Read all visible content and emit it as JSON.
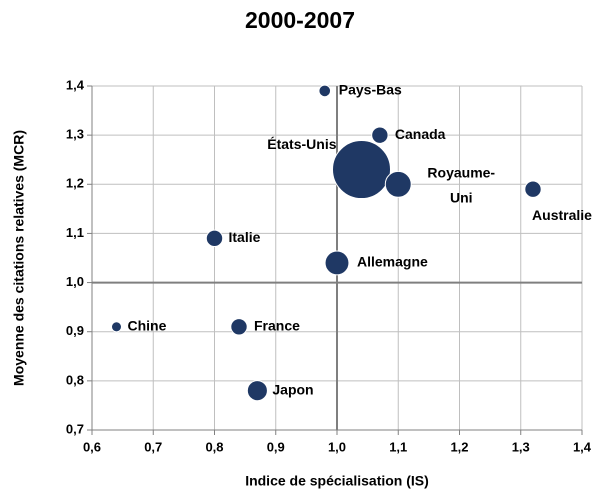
{
  "chart_data": {
    "type": "scatter",
    "title": "2000-2007",
    "x_label": "Indice de spécialisation (IS)",
    "y_label": "Moyenne des citations relatives (MCR)",
    "color": "#1f3864",
    "grid": true,
    "reference_x": 1,
    "reference_y": 1,
    "xlim": [
      0.6,
      1.4
    ],
    "ylim": [
      0.7,
      1.4
    ],
    "xticks": [
      {
        "value": 0.6,
        "label": "0,6"
      },
      {
        "value": 0.7,
        "label": "0,7"
      },
      {
        "value": 0.8,
        "label": "0,8"
      },
      {
        "value": 0.9,
        "label": "0,9"
      },
      {
        "value": 1.0,
        "label": "1,0"
      },
      {
        "value": 1.1,
        "label": "1,1"
      },
      {
        "value": 1.2,
        "label": "1,2"
      },
      {
        "value": 1.3,
        "label": "1,3"
      },
      {
        "value": 1.4,
        "label": "1,4"
      }
    ],
    "yticks": [
      {
        "value": 0.7,
        "label": "0,7"
      },
      {
        "value": 0.8,
        "label": "0,8"
      },
      {
        "value": 0.9,
        "label": "0,9"
      },
      {
        "value": 1.0,
        "label": "1,0"
      },
      {
        "value": 1.1,
        "label": "1,1"
      },
      {
        "value": 1.2,
        "label": "1,2"
      },
      {
        "value": 1.3,
        "label": "1,3"
      },
      {
        "value": 1.4,
        "label": "1,4"
      }
    ],
    "labels": [
      "Pays-Bas",
      "Canada",
      "États-Unis",
      "Royaume-Uni",
      "Australie",
      "Italie",
      "Allemagne",
      "Chine",
      "France",
      "Japon"
    ],
    "x": [
      0.98,
      1.07,
      1.04,
      1.1,
      1.32,
      0.8,
      1.0,
      0.64,
      0.84,
      0.87
    ],
    "y": [
      1.39,
      1.3,
      1.23,
      1.2,
      1.19,
      1.09,
      1.04,
      0.91,
      0.91,
      0.78
    ],
    "sizes": [
      4,
      8,
      100,
      20,
      8,
      8,
      17,
      3,
      8,
      12
    ]
  }
}
